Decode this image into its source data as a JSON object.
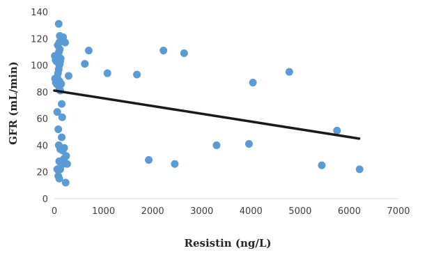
{
  "chart_data": {
    "type": "scatter",
    "xlabel": "Resistin (ng/L)",
    "ylabel": "GFR (mL/min)",
    "xlim": [
      0,
      7000
    ],
    "ylim": [
      0,
      140
    ],
    "x_ticks": [
      0,
      1000,
      2000,
      3000,
      4000,
      5000,
      6000,
      7000
    ],
    "y_ticks": [
      0,
      20,
      40,
      60,
      80,
      100,
      120,
      140
    ],
    "grid": false,
    "legend": "none",
    "point_color": "#5b9bd5",
    "trendline_color": "#1a1a1a",
    "points": [
      [
        10,
        107
      ],
      [
        25,
        104
      ],
      [
        40,
        103
      ],
      [
        15,
        90
      ],
      [
        30,
        87
      ],
      [
        45,
        86
      ],
      [
        60,
        91
      ],
      [
        75,
        94
      ],
      [
        90,
        97
      ],
      [
        100,
        100
      ],
      [
        110,
        101
      ],
      [
        120,
        103
      ],
      [
        130,
        105
      ],
      [
        80,
        108
      ],
      [
        95,
        110
      ],
      [
        110,
        112
      ],
      [
        70,
        115
      ],
      [
        100,
        117
      ],
      [
        130,
        118
      ],
      [
        150,
        119
      ],
      [
        180,
        121
      ],
      [
        110,
        122
      ],
      [
        220,
        117
      ],
      [
        90,
        131
      ],
      [
        105,
        88
      ],
      [
        140,
        86
      ],
      [
        100,
        83
      ],
      [
        120,
        81
      ],
      [
        290,
        92
      ],
      [
        150,
        71
      ],
      [
        60,
        65
      ],
      [
        160,
        61
      ],
      [
        80,
        52
      ],
      [
        150,
        46
      ],
      [
        90,
        40
      ],
      [
        120,
        37
      ],
      [
        170,
        36
      ],
      [
        200,
        38
      ],
      [
        240,
        32
      ],
      [
        200,
        30
      ],
      [
        260,
        26
      ],
      [
        100,
        28
      ],
      [
        140,
        25
      ],
      [
        60,
        22
      ],
      [
        120,
        22
      ],
      [
        80,
        17
      ],
      [
        100,
        15
      ],
      [
        230,
        12
      ],
      [
        700,
        111
      ],
      [
        620,
        101
      ],
      [
        1080,
        94
      ],
      [
        1680,
        93
      ],
      [
        2220,
        111
      ],
      [
        2640,
        109
      ],
      [
        1920,
        29
      ],
      [
        2450,
        26
      ],
      [
        3300,
        40
      ],
      [
        3960,
        41
      ],
      [
        4040,
        87
      ],
      [
        4780,
        95
      ],
      [
        5440,
        25
      ],
      [
        5750,
        51
      ],
      [
        6210,
        22
      ]
    ],
    "trendline": [
      [
        0,
        81
      ],
      [
        6200,
        45
      ]
    ]
  }
}
